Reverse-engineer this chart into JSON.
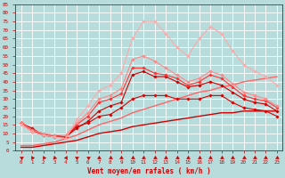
{
  "xlabel": "Vent moyen/en rafales ( km/h )",
  "background_color": "#b8dcdc",
  "grid_color": "#c8e8e8",
  "xlim": [
    -0.5,
    23.5
  ],
  "ylim": [
    0,
    85
  ],
  "yticks": [
    0,
    5,
    10,
    15,
    20,
    25,
    30,
    35,
    40,
    45,
    50,
    55,
    60,
    65,
    70,
    75,
    80,
    85
  ],
  "xticks": [
    0,
    1,
    2,
    3,
    4,
    5,
    6,
    7,
    8,
    9,
    10,
    11,
    12,
    13,
    14,
    15,
    16,
    17,
    18,
    19,
    20,
    21,
    22,
    23
  ],
  "series": [
    {
      "x": [
        0,
        1,
        2,
        3,
        4,
        5,
        6,
        7,
        8,
        9,
        10,
        11,
        12,
        13,
        14,
        15,
        16,
        17,
        18,
        19,
        20,
        21,
        22,
        23
      ],
      "y": [
        16,
        13,
        9,
        9,
        8,
        14,
        16,
        20,
        21,
        25,
        30,
        32,
        32,
        32,
        30,
        30,
        30,
        32,
        32,
        28,
        25,
        24,
        23,
        20
      ],
      "color": "#dd0000",
      "lw": 0.8,
      "marker": "D",
      "ms": 1.8
    },
    {
      "x": [
        0,
        1,
        2,
        3,
        4,
        5,
        6,
        7,
        8,
        9,
        10,
        11,
        12,
        13,
        14,
        15,
        16,
        17,
        18,
        19,
        20,
        21,
        22,
        23
      ],
      "y": [
        16,
        12,
        9,
        8,
        8,
        13,
        17,
        23,
        26,
        28,
        44,
        46,
        43,
        43,
        40,
        37,
        38,
        40,
        38,
        34,
        30,
        28,
        27,
        23
      ],
      "color": "#cc0000",
      "lw": 0.8,
      "marker": "D",
      "ms": 1.8
    },
    {
      "x": [
        0,
        1,
        2,
        3,
        4,
        5,
        6,
        7,
        8,
        9,
        10,
        11,
        12,
        13,
        14,
        15,
        16,
        17,
        18,
        19,
        20,
        21,
        22,
        23
      ],
      "y": [
        16,
        11,
        9,
        8,
        8,
        15,
        20,
        28,
        30,
        33,
        48,
        48,
        45,
        44,
        42,
        38,
        40,
        44,
        42,
        37,
        32,
        30,
        29,
        25
      ],
      "color": "#ff3333",
      "lw": 0.8,
      "marker": "D",
      "ms": 1.8
    },
    {
      "x": [
        0,
        1,
        2,
        3,
        4,
        5,
        6,
        7,
        8,
        9,
        10,
        11,
        12,
        13,
        14,
        15,
        16,
        17,
        18,
        19,
        20,
        21,
        22,
        23
      ],
      "y": [
        16,
        12,
        10,
        9,
        9,
        16,
        22,
        30,
        32,
        36,
        53,
        55,
        52,
        48,
        44,
        40,
        42,
        46,
        44,
        39,
        34,
        32,
        30,
        26
      ],
      "color": "#ff8888",
      "lw": 0.8,
      "marker": "D",
      "ms": 1.8
    },
    {
      "x": [
        0,
        1,
        2,
        3,
        4,
        5,
        6,
        7,
        8,
        9,
        10,
        11,
        12,
        13,
        14,
        15,
        16,
        17,
        18,
        19,
        20,
        21,
        22,
        23
      ],
      "y": [
        15,
        11,
        9,
        8,
        7,
        18,
        26,
        35,
        38,
        45,
        65,
        75,
        75,
        68,
        60,
        55,
        65,
        72,
        68,
        58,
        50,
        46,
        43,
        38
      ],
      "color": "#ffaaaa",
      "lw": 0.8,
      "marker": "D",
      "ms": 1.8
    },
    {
      "x": [
        0,
        1,
        2,
        3,
        4,
        5,
        6,
        7,
        8,
        9,
        10,
        11,
        12,
        13,
        14,
        15,
        16,
        17,
        18,
        19,
        20,
        21,
        22,
        23
      ],
      "y": [
        2,
        2,
        3,
        4,
        5,
        6,
        8,
        10,
        11,
        12,
        14,
        15,
        16,
        17,
        18,
        19,
        20,
        21,
        22,
        22,
        23,
        23,
        23,
        23
      ],
      "color": "#cc0000",
      "lw": 1.0,
      "marker": null,
      "ms": 0
    },
    {
      "x": [
        0,
        1,
        2,
        3,
        4,
        5,
        6,
        7,
        8,
        9,
        10,
        11,
        12,
        13,
        14,
        15,
        16,
        17,
        18,
        19,
        20,
        21,
        22,
        23
      ],
      "y": [
        3,
        3,
        4,
        5,
        7,
        9,
        12,
        15,
        17,
        19,
        22,
        24,
        26,
        28,
        30,
        32,
        34,
        35,
        37,
        38,
        40,
        41,
        42,
        43
      ],
      "color": "#ff6666",
      "lw": 1.0,
      "marker": null,
      "ms": 0
    }
  ],
  "arrow_directions": [
    180,
    150,
    150,
    135,
    90,
    60,
    60,
    0,
    0,
    0,
    0,
    0,
    0,
    0,
    0,
    0,
    0,
    0,
    0,
    0,
    0,
    0,
    0,
    0
  ],
  "arrow_color": "#cc0000"
}
